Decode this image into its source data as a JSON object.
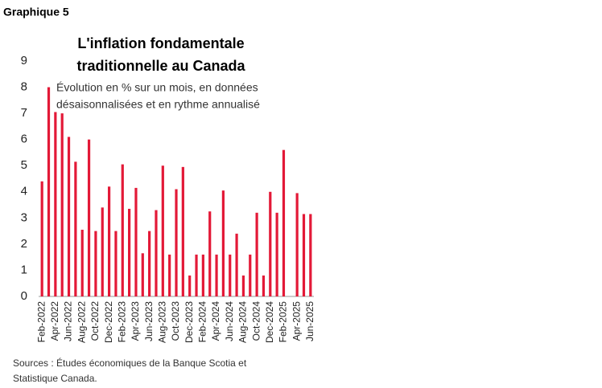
{
  "label": "Graphique 5",
  "chart_data": {
    "type": "bar",
    "title": [
      "L'inflation fondamentale",
      "traditionnelle au Canada"
    ],
    "subtitle": [
      "Évolution en % sur un mois, en données",
      "désaisonnalisées et en rythme annualisé"
    ],
    "source": [
      "Sources : Études économiques de la Banque Scotia et",
      "Statistique Canada."
    ],
    "categories": [
      "Feb-2022",
      null,
      "Apr-2022",
      null,
      "Jun-2022",
      null,
      "Aug-2022",
      null,
      "Oct-2022",
      null,
      "Dec-2022",
      null,
      "Feb-2023",
      null,
      "Apr-2023",
      null,
      "Jun-2023",
      null,
      "Aug-2023",
      null,
      "Oct-2023",
      null,
      "Dec-2023",
      null,
      "Feb-2024",
      null,
      "Apr-2024",
      null,
      "Jun-2024",
      null,
      "Aug-2024",
      null,
      "Oct-2024",
      null,
      "Dec-2024",
      null,
      "Feb-2025",
      null,
      "Apr-2025",
      null,
      "Jun-2025"
    ],
    "values": [
      4.4,
      8.0,
      7.05,
      7.0,
      6.1,
      5.15,
      2.55,
      6.0,
      2.5,
      3.4,
      4.2,
      2.5,
      5.05,
      3.35,
      4.15,
      1.65,
      2.5,
      3.3,
      5.0,
      1.6,
      4.1,
      4.95,
      0.8,
      1.6,
      1.6,
      3.25,
      1.6,
      4.05,
      1.6,
      2.4,
      0.8,
      1.6,
      3.2,
      0.8,
      4.0,
      3.2,
      5.6,
      null,
      3.95,
      3.15,
      3.15
    ],
    "color": "#e31937",
    "ylim": [
      0,
      9
    ],
    "yticks": [
      0,
      1,
      2,
      3,
      4,
      5,
      6,
      7,
      8,
      9
    ],
    "grid": false
  }
}
